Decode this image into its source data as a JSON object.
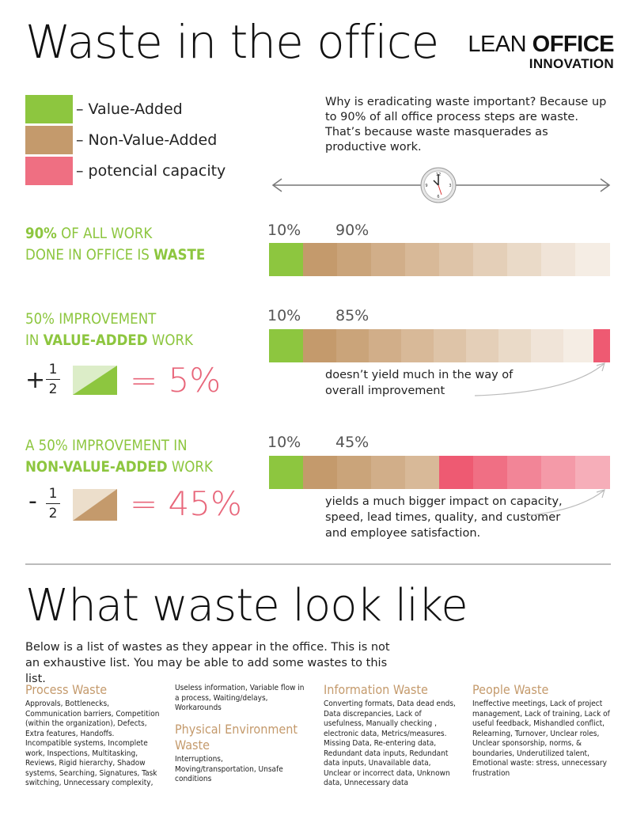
{
  "header": {
    "title": "Waste in the office",
    "logo_line1_light": "LEAN ",
    "logo_line1_bold": "OFFICE",
    "logo_line2": "INNOVATION"
  },
  "legend": [
    {
      "label": "– Value-Added",
      "color": "#8dc63f"
    },
    {
      "label": "– Non-Value-Added",
      "color": "#c49a6c"
    },
    {
      "label": "– potencial capacity",
      "color": "#ef6f82"
    }
  ],
  "intro": "Why is eradicating waste important? Because up to 90% of all office process steps are waste. That’s because waste masquerades as productive work.",
  "section1": {
    "heading_bold1": "90%",
    "heading_rest1": " OF ALL WORK",
    "heading_line2_pre": "DONE IN OFFICE IS ",
    "heading_line2_bold": "WASTE",
    "pct_left": "10%",
    "pct_right": "90%"
  },
  "section2": {
    "heading_line1": "50% IMPROVEMENT",
    "heading_line2_pre": "IN ",
    "heading_line2_bold": "VALUE-ADDED",
    "heading_line2_post": " WORK",
    "sign": "+",
    "frac_num": "1",
    "frac_den": "2",
    "result": "= 5%",
    "pct_left": "10%",
    "pct_right": "85%",
    "note": "doesn’t yield much in the way of overall improvement"
  },
  "section3": {
    "heading_line1": "A 50% IMPROVEMENT IN",
    "heading_line2_bold": "NON-VALUE-ADDED",
    "heading_line2_post": " WORK",
    "sign": "-",
    "frac_num": "1",
    "frac_den": "2",
    "result": "= 45%",
    "pct_left": "10%",
    "pct_right": "45%",
    "note": "yields a much bigger impact on capacity, speed, lead times, quality, and customer and employee satisfaction."
  },
  "bars": {
    "bar1": {
      "value_added": 10,
      "non_value_added": 90,
      "capacity": 0
    },
    "bar2": {
      "value_added": 10,
      "non_value_added": 85,
      "capacity": 5
    },
    "bar3": {
      "value_added": 10,
      "non_value_added": 45,
      "capacity": 45
    }
  },
  "section4": {
    "title": "What waste look like",
    "intro": "Below is a list of wastes as they appear in the office. This is not an exhaustive list. You may be able to add some wastes to this list."
  },
  "categories": {
    "process": {
      "title": "Process Waste",
      "text": "Approvals, Bottlenecks, Communication barriers, Competition (within the organization), Defects, Extra features, Handoffs. Incompatible systems, Incomplete work, Inspections, Multitasking, Reviews, Rigid hierarchy, Shadow systems, Searching, Signatures, Task switching, Unnecessary complexity,",
      "continued": "Useless information, Variable flow in a process, Waiting/delays, Workarounds"
    },
    "physical": {
      "title": "Physical Environment Waste",
      "text": "Interruptions, Moving/transportation, Unsafe conditions"
    },
    "information": {
      "title": "Information Waste",
      "text": "Converting formats, Data dead ends, Data discrepancies, Lack of usefulness, Manually checking , electronic data, Metrics/measures. Missing Data, Re-entering data, Redundant data inputs, Redundant data inputs, Unavailable data, Unclear or incorrect data, Unknown data, Unnecessary data"
    },
    "people": {
      "title": "People Waste",
      "text": "Ineffective meetings, Lack of project management, Lack of training, Lack of useful feedback, Mishandled conflict, Relearning, Turnover, Unclear roles, Unclear sponsorship, norms, & boundaries, Underutilized talent, Emotional waste: stress, unnecessary frustration"
    }
  }
}
